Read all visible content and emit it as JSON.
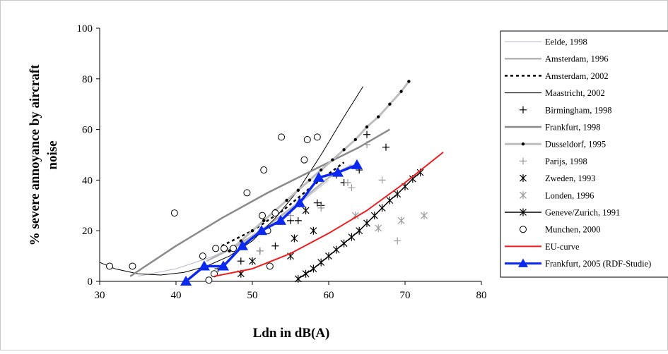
{
  "chart_data": {
    "type": "line",
    "title": "",
    "xlabel": "Ldn in dB(A)",
    "ylabel_lines": [
      "% severe annoyance by aircraft",
      "noise"
    ],
    "xlim": [
      30,
      80
    ],
    "ylim": [
      0,
      100
    ],
    "xticks": [
      30,
      40,
      50,
      60,
      70,
      80
    ],
    "yticks": [
      0,
      20,
      40,
      60,
      80,
      100
    ],
    "grid": false,
    "legend_position": "right",
    "series": [
      {
        "name": "Eelde, 1998",
        "kind": "line",
        "color": "#b8b8d0",
        "width": 1,
        "x": [
          35,
          40,
          45,
          50,
          55,
          60
        ],
        "y": [
          2,
          5,
          10,
          18,
          28,
          40
        ]
      },
      {
        "name": "Amsterdam, 1996",
        "kind": "line",
        "color": "#b5b5b5",
        "width": 2.5,
        "x": [
          44,
          48,
          52,
          56,
          60,
          63
        ],
        "y": [
          8,
          14,
          22,
          31,
          41,
          46
        ]
      },
      {
        "name": "Amsterdam, 2002",
        "kind": "line",
        "color": "#000000",
        "width": 2.5,
        "dash": "4,4",
        "x": [
          46,
          50,
          54,
          58,
          62
        ],
        "y": [
          14,
          20,
          28,
          38,
          47
        ]
      },
      {
        "name": "Maastricht, 2002",
        "kind": "line",
        "color": "#000000",
        "width": 1,
        "x": [
          30,
          32,
          35,
          38,
          41,
          44,
          47,
          50,
          53,
          56,
          59,
          62,
          64.5
        ],
        "y": [
          7.5,
          5,
          3,
          2.5,
          3.5,
          6,
          10,
          16,
          25,
          36,
          50,
          65,
          77
        ]
      },
      {
        "name": "Birmingham, 1998",
        "kind": "marker",
        "marker": "plus",
        "color": "#000000",
        "x": [
          45.5,
          48.5,
          51,
          53,
          55,
          56,
          58.5,
          59,
          61,
          62,
          64,
          65,
          67.5
        ],
        "y": [
          5,
          8,
          12,
          14,
          24,
          24,
          31,
          30,
          42,
          39,
          44,
          58,
          53
        ]
      },
      {
        "name": "Frankfurt, 1998",
        "kind": "line",
        "color": "#8a8a8a",
        "width": 2.5,
        "x": [
          34,
          40,
          46,
          52,
          58,
          64,
          68
        ],
        "y": [
          2,
          14,
          25,
          35,
          44,
          53,
          60
        ]
      },
      {
        "name": "Dusseldorf, 1995",
        "kind": "line",
        "marker": "dot",
        "color": "#bdbdbd",
        "width": 3,
        "x": [
          47,
          48.5,
          50,
          51.5,
          53,
          54.5,
          56,
          57.5,
          59,
          60.5,
          62,
          63.5,
          65,
          66.5,
          68,
          69.5,
          70.5
        ],
        "y": [
          12,
          16,
          20,
          24,
          28,
          32,
          36,
          40,
          44,
          48,
          52,
          56,
          61,
          65,
          70,
          75,
          79
        ]
      },
      {
        "name": "Parijs, 1998",
        "kind": "marker",
        "marker": "plus",
        "color": "#9a9a9a",
        "x": [
          51,
          55,
          59,
          62.5,
          63,
          65,
          67,
          69
        ],
        "y": [
          12,
          26,
          29,
          39,
          37,
          54,
          40,
          16
        ]
      },
      {
        "name": "Zweden, 1993",
        "kind": "marker",
        "marker": "asterisk",
        "color": "#000000",
        "x": [
          48.5,
          50,
          55,
          55.5,
          57,
          58
        ],
        "y": [
          3,
          8,
          10,
          17,
          28,
          20
        ]
      },
      {
        "name": "Londen, 1996",
        "kind": "marker",
        "marker": "asterisk",
        "color": "#9a9a9a",
        "x": [
          63.5,
          66.5,
          69.5,
          72.5
        ],
        "y": [
          26,
          21,
          24,
          26
        ]
      },
      {
        "name": "Geneve/Zurich, 1991",
        "kind": "line",
        "marker": "asterisk",
        "color": "#000000",
        "width": 1.5,
        "x": [
          56,
          57,
          58,
          59,
          60,
          61,
          62,
          63,
          64,
          65,
          66,
          67,
          68,
          69,
          70,
          71,
          72
        ],
        "y": [
          1,
          3,
          5,
          7.5,
          10,
          12.5,
          15,
          17.5,
          20,
          23,
          26,
          29,
          32,
          34.5,
          37.5,
          40.5,
          43
        ]
      },
      {
        "name": "Munchen, 2000",
        "kind": "marker",
        "marker": "circle",
        "color": "#000000",
        "x": [
          31.3,
          34.3,
          39.8,
          43.5,
          44.3,
          45,
          45.2,
          46.3,
          47.5,
          49.3,
          51.3,
          51.5,
          52,
          52.3,
          53,
          53.8,
          56.8,
          57.2,
          58.5
        ],
        "y": [
          6,
          6,
          27,
          10,
          0.5,
          3,
          13,
          13,
          13,
          35,
          26,
          44,
          20,
          6,
          27,
          57,
          48,
          56,
          57
        ]
      },
      {
        "name": "EU-curve",
        "kind": "line",
        "color": "#ee1c1c",
        "width": 2,
        "x": [
          45,
          50,
          55,
          60,
          65,
          70,
          75
        ],
        "y": [
          2,
          5,
          11,
          19,
          28,
          39,
          51
        ]
      },
      {
        "name": "Frankfurt, 2005 (RDF-Studie)",
        "kind": "line",
        "marker": "triangle",
        "color": "#0a28f0",
        "width": 3.5,
        "x": [
          41.3,
          43.7,
          46.2,
          48.7,
          51.2,
          53.7,
          56.2,
          58.7,
          61.2,
          63.7
        ],
        "y": [
          0,
          6,
          6,
          14,
          20,
          24,
          31,
          41,
          43,
          46
        ]
      }
    ]
  }
}
